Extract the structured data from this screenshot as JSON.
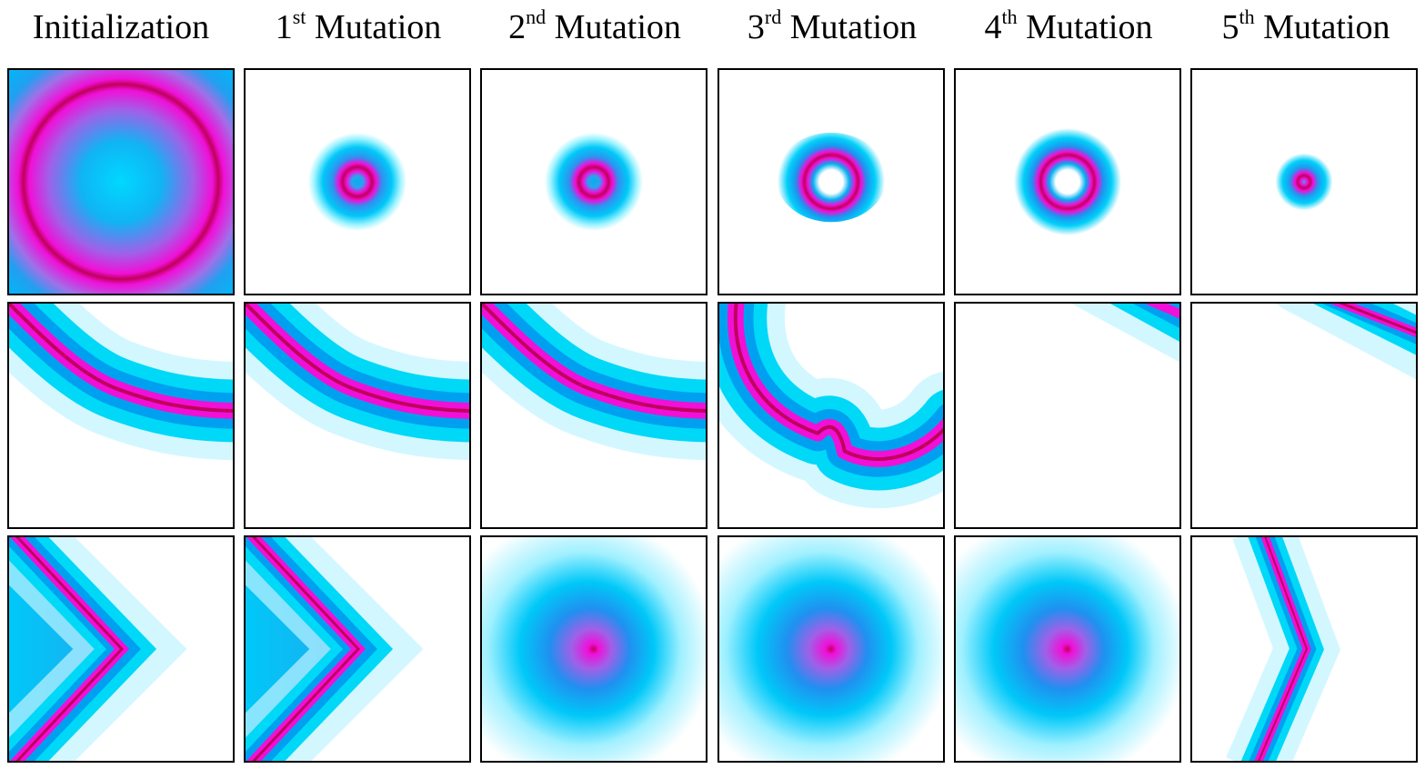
{
  "columns": [
    {
      "main": "Initialization",
      "ordinal": "",
      "suffix": "",
      "name": ""
    },
    {
      "main": "",
      "ordinal": "1",
      "suffix": "st",
      "name": " Mutation"
    },
    {
      "main": "",
      "ordinal": "2",
      "suffix": "nd",
      "name": " Mutation"
    },
    {
      "main": "",
      "ordinal": "3",
      "suffix": "rd",
      "name": " Mutation"
    },
    {
      "main": "",
      "ordinal": "4",
      "suffix": "th",
      "name": " Mutation"
    },
    {
      "main": "",
      "ordinal": "5",
      "suffix": "th",
      "name": " Mutation"
    }
  ],
  "colors": {
    "border": "#000000",
    "background": "#ffffff",
    "cyan": "#00e5ff",
    "blue": "#00a6f0",
    "magenta": "#ff10d8",
    "crimson": "#c8005a"
  }
}
